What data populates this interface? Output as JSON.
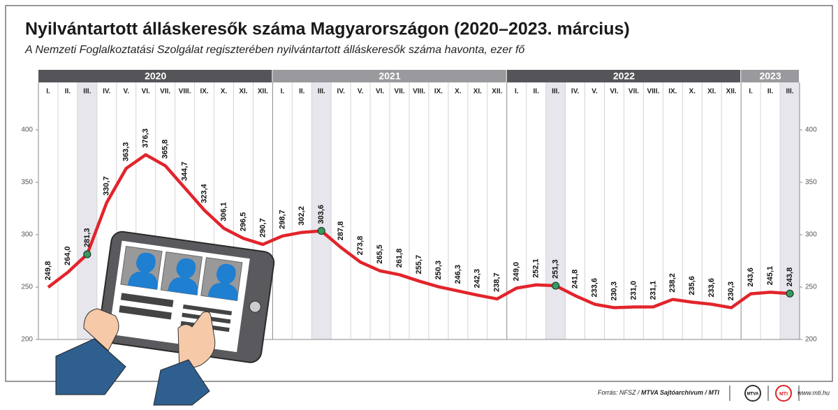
{
  "chart_data": {
    "type": "line",
    "title": "Nyilvántartott álláskeresők száma Magyarországon (2020–2023. március)",
    "subtitle": "A Nemzeti Foglalkoztatási Szolgálat regiszterében nyilvántartott álláskeresők száma havonta, ezer fő",
    "years": [
      {
        "label": "2020",
        "color": "#555559"
      },
      {
        "label": "2021",
        "color": "#9a9a9e"
      },
      {
        "label": "2022",
        "color": "#555559"
      },
      {
        "label": "2023",
        "color": "#9a9a9e"
      }
    ],
    "categories": [
      "I.",
      "II.",
      "III.",
      "IV.",
      "V.",
      "VI.",
      "VII.",
      "VIII.",
      "IX.",
      "X.",
      "XI.",
      "XII.",
      "I.",
      "II.",
      "III.",
      "IV.",
      "V.",
      "VI.",
      "VII.",
      "VIII.",
      "IX.",
      "X.",
      "XI.",
      "XII.",
      "I.",
      "II.",
      "III.",
      "IV.",
      "V.",
      "VI.",
      "VII.",
      "VIII.",
      "IX.",
      "X.",
      "XI.",
      "XII.",
      "I.",
      "II.",
      "III."
    ],
    "values": [
      249.8,
      264.0,
      281.3,
      330.7,
      363.3,
      376.3,
      365.8,
      344.7,
      323.4,
      306.1,
      296.5,
      290.7,
      298.7,
      302.2,
      303.6,
      287.8,
      273.8,
      265.5,
      261.8,
      255.7,
      250.3,
      246.3,
      242.3,
      238.7,
      249.0,
      252.1,
      251.3,
      241.8,
      233.6,
      230.3,
      231.0,
      231.1,
      238.2,
      235.6,
      233.6,
      230.3,
      243.6,
      245.1,
      243.8
    ],
    "value_labels": [
      "249,8",
      "264,0",
      "281,3",
      "330,7",
      "363,3",
      "376,3",
      "365,8",
      "344,7",
      "323,4",
      "306,1",
      "296,5",
      "290,7",
      "298,7",
      "302,2",
      "303,6",
      "287,8",
      "273,8",
      "265,5",
      "261,8",
      "255,7",
      "250,3",
      "246,3",
      "242,3",
      "238,7",
      "249,0",
      "252,1",
      "251,3",
      "241,8",
      "233,6",
      "230,3",
      "231,0",
      "231,1",
      "238,2",
      "235,6",
      "233,6",
      "230,3",
      "243,6",
      "245,1",
      "243,8"
    ],
    "color": "#e2242b",
    "highlight_month": "III.",
    "highlight_color": "#e6e6ec",
    "marker_color": "#3a9a5e",
    "ylim": [
      200,
      444
    ],
    "yticks": [
      200,
      250,
      300,
      350,
      400
    ],
    "source_plain": "Forrás: NFSZ /",
    "source_bold": "MTVA Sajtóarchívum / MTI",
    "logos": [
      "MTVA",
      "MTI"
    ],
    "website": "www.mti.hu"
  }
}
